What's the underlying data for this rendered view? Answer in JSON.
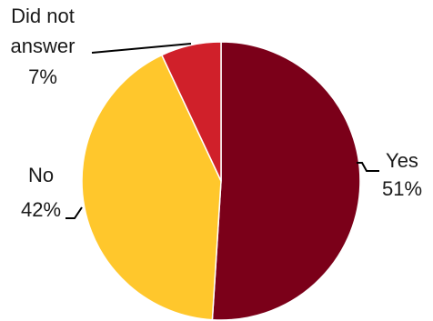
{
  "chart_data": {
    "type": "pie",
    "title": "",
    "start_angle_deg": 0,
    "direction": "clockwise",
    "slices": [
      {
        "label": "Yes",
        "value": 51,
        "value_text": "51%",
        "color": "#7B0019"
      },
      {
        "label": "No",
        "value": 42,
        "value_text": "42%",
        "color": "#FFC72C"
      },
      {
        "label": "Did not answer",
        "label_lines": [
          "Did not",
          "answer"
        ],
        "value": 7,
        "value_text": "7%",
        "color": "#D0202A"
      }
    ],
    "legend": "none"
  }
}
